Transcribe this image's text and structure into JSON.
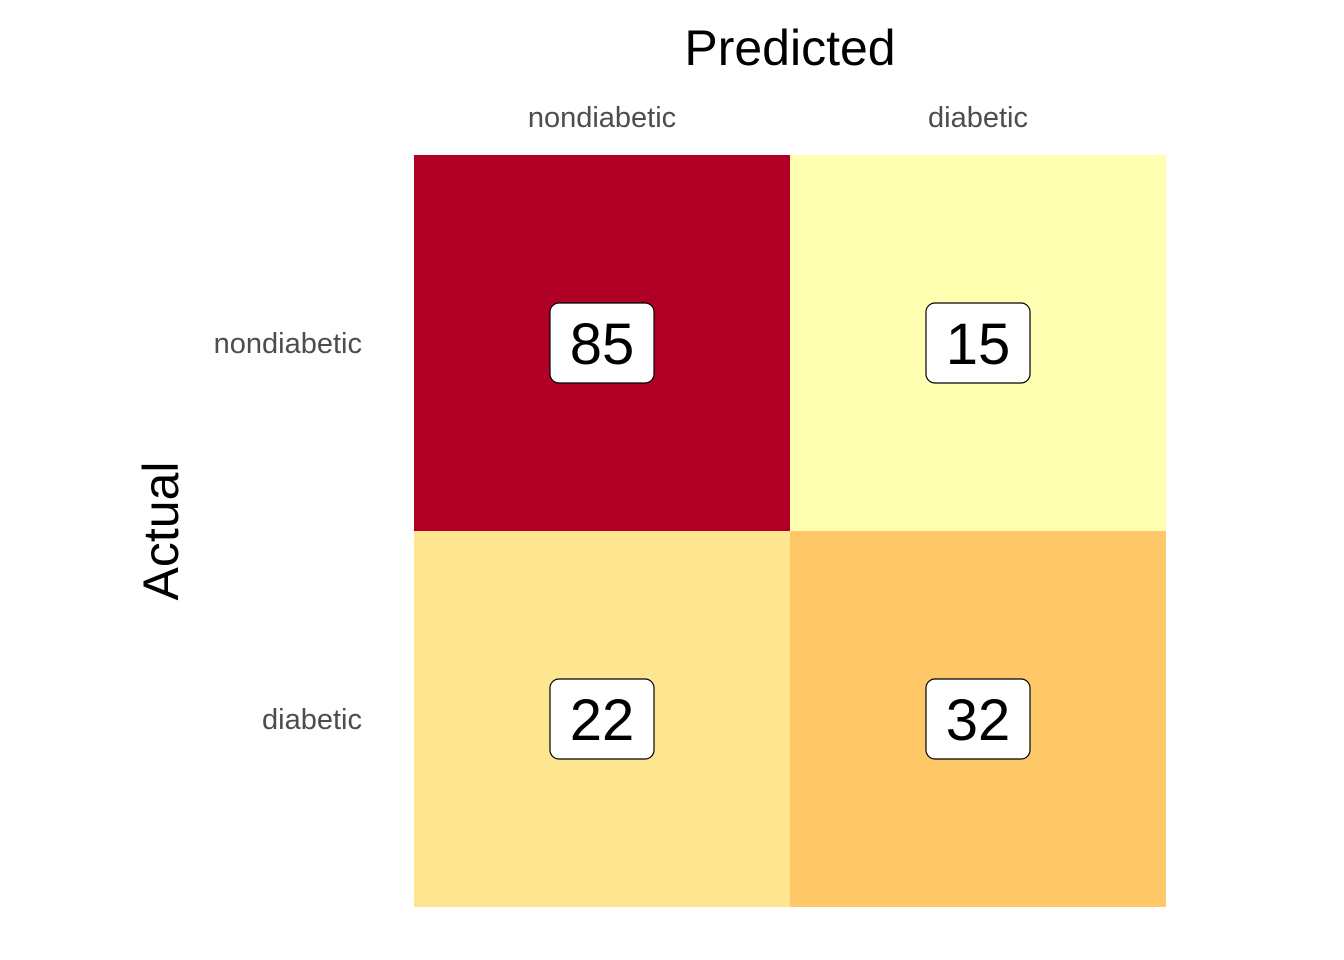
{
  "chart_data": {
    "type": "heatmap",
    "xlabel": "Predicted",
    "ylabel": "Actual",
    "x_categories": [
      "nondiabetic",
      "diabetic"
    ],
    "y_categories": [
      "nondiabetic",
      "diabetic"
    ],
    "values": [
      [
        85,
        15
      ],
      [
        22,
        32
      ]
    ],
    "cell_colors": [
      [
        "#b10026",
        "#ffffb2"
      ],
      [
        "#fee58f",
        "#fec767"
      ]
    ],
    "legend": "none",
    "grid": false
  }
}
